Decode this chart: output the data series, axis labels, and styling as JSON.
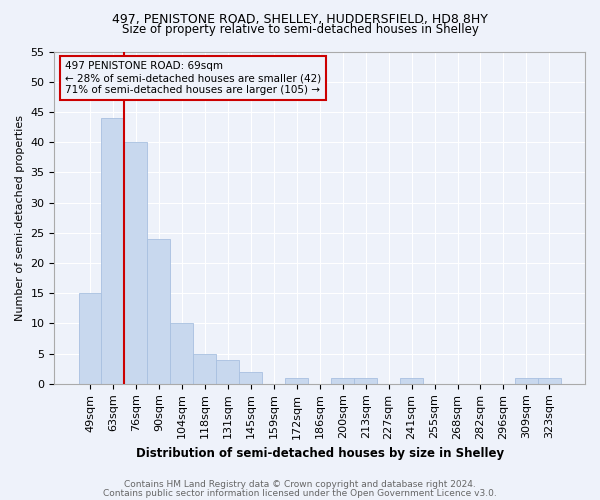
{
  "title1": "497, PENISTONE ROAD, SHELLEY, HUDDERSFIELD, HD8 8HY",
  "title2": "Size of property relative to semi-detached houses in Shelley",
  "xlabel": "Distribution of semi-detached houses by size in Shelley",
  "ylabel": "Number of semi-detached properties",
  "categories": [
    "49sqm",
    "63sqm",
    "76sqm",
    "90sqm",
    "104sqm",
    "118sqm",
    "131sqm",
    "145sqm",
    "159sqm",
    "172sqm",
    "186sqm",
    "200sqm",
    "213sqm",
    "227sqm",
    "241sqm",
    "255sqm",
    "268sqm",
    "282sqm",
    "296sqm",
    "309sqm",
    "323sqm"
  ],
  "values": [
    15,
    44,
    40,
    24,
    10,
    5,
    4,
    2,
    0,
    1,
    0,
    1,
    1,
    0,
    1,
    0,
    0,
    0,
    0,
    1,
    1
  ],
  "bar_color": "#c8d8ee",
  "bar_edge_color": "#a8c0e0",
  "annotation_text_line1": "497 PENISTONE ROAD: 69sqm",
  "annotation_text_line2": "← 28% of semi-detached houses are smaller (42)",
  "annotation_text_line3": "71% of semi-detached houses are larger (105) →",
  "vline_color": "#cc0000",
  "vline_x": 1.5,
  "ylim": [
    0,
    55
  ],
  "yticks": [
    0,
    5,
    10,
    15,
    20,
    25,
    30,
    35,
    40,
    45,
    50,
    55
  ],
  "footer1": "Contains HM Land Registry data © Crown copyright and database right 2024.",
  "footer2": "Contains public sector information licensed under the Open Government Licence v3.0.",
  "bg_color": "#eef2fa",
  "box_color": "#cc0000",
  "grid_color": "#ffffff"
}
